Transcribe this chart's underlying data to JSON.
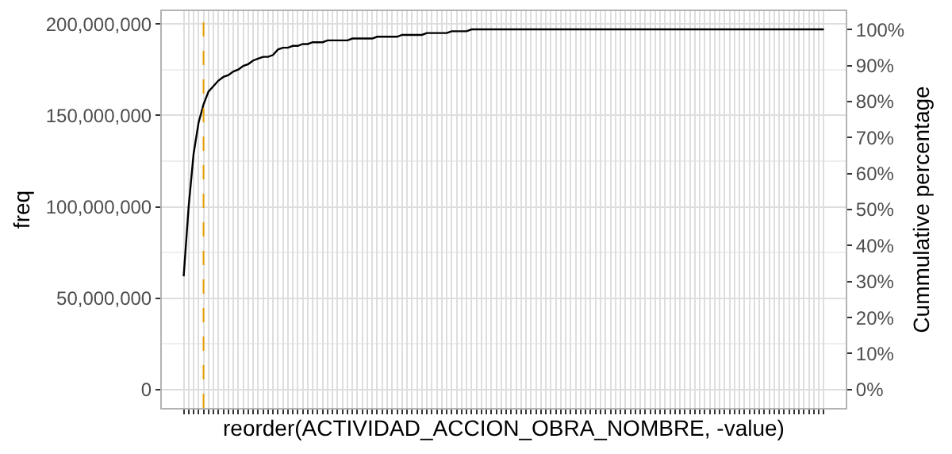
{
  "chart_data": {
    "type": "line",
    "xlabel": "reorder(ACTIVIDAD_ACCION_OBRA_NOMBRE, -value)",
    "ylabel": "freq",
    "y2label": "Cummulative percentage",
    "categories": [
      null,
      null,
      null,
      null,
      null,
      null,
      null,
      null,
      null,
      null,
      null,
      null,
      null,
      null,
      null,
      null,
      null,
      null,
      null,
      null,
      null,
      null,
      null,
      null,
      null,
      null,
      null,
      null,
      null,
      null,
      null,
      null,
      null,
      null,
      null,
      null,
      null,
      null,
      null,
      null,
      null,
      null,
      null,
      null,
      null,
      null,
      null,
      null,
      null,
      null,
      null,
      null,
      null,
      null,
      null,
      null,
      null,
      null,
      null,
      null,
      null,
      null,
      null,
      null,
      null,
      null,
      null,
      null,
      null,
      null,
      null,
      null,
      null,
      null,
      null,
      null,
      null,
      null,
      null,
      null,
      null,
      null,
      null,
      null,
      null,
      null,
      null,
      null,
      null,
      null,
      null,
      null,
      null,
      null,
      null,
      null,
      null,
      null,
      null,
      null,
      null,
      null,
      null,
      null,
      null,
      null,
      null,
      null,
      null,
      null,
      null,
      null,
      null,
      null,
      null,
      null,
      null,
      null,
      null,
      null,
      null,
      null,
      null,
      null,
      null,
      null,
      null,
      null,
      null,
      null
    ],
    "series": [
      {
        "color": "#000000",
        "values": [
          62000000,
          100000000,
          129000000,
          146000000,
          156000000,
          163000000,
          166000000,
          169000000,
          171000000,
          172000000,
          174000000,
          175000000,
          177000000,
          178000000,
          180000000,
          181000000,
          182000000,
          182000000,
          183000000,
          186000000,
          187000000,
          187000000,
          188000000,
          188000000,
          189000000,
          189000000,
          190000000,
          190000000,
          190000000,
          191000000,
          191000000,
          191000000,
          191000000,
          191000000,
          192000000,
          192000000,
          192000000,
          192000000,
          192000000,
          193000000,
          193000000,
          193000000,
          193000000,
          193000000,
          194000000,
          194000000,
          194000000,
          194000000,
          194000000,
          195000000,
          195000000,
          195000000,
          195000000,
          195000000,
          196000000,
          196000000,
          196000000,
          196000000,
          197000000,
          197000000,
          197000000,
          197000000,
          197000000,
          197000000,
          197000000,
          197000000,
          197000000,
          197000000,
          197000000,
          197000000,
          197000000,
          197000000,
          197000000,
          197000000,
          197000000,
          197000000,
          197000000,
          197000000,
          197000000,
          197000000,
          197000000,
          197000000,
          197000000,
          197000000,
          197000000,
          197000000,
          197000000,
          197000000,
          197000000,
          197000000,
          197000000,
          197000000,
          197000000,
          197000000,
          197000000,
          197000000,
          197000000,
          197000000,
          197000000,
          197000000,
          197000000,
          197000000,
          197000000,
          197000000,
          197000000,
          197000000,
          197000000,
          197000000,
          197000000,
          197000000,
          197000000,
          197000000,
          197000000,
          197000000,
          197000000,
          197000000,
          197000000,
          197000000,
          197000000,
          197000000,
          197000000,
          197000000,
          197000000,
          197000000,
          197000000,
          197000000,
          197000000,
          197000000,
          197000000,
          197000000
        ]
      }
    ],
    "ylim": [
      -10000000,
      207000000
    ],
    "yticks": [
      {
        "value": 0,
        "label": "0"
      },
      {
        "value": 50000000,
        "label": "50,000,000"
      },
      {
        "value": 100000000,
        "label": "100,000,000"
      },
      {
        "value": 150000000,
        "label": "150,000,000"
      },
      {
        "value": 200000000,
        "label": "200,000,000"
      }
    ],
    "y2lim": [
      -5.1,
      105.1
    ],
    "y2ticks": [
      {
        "value": 0,
        "label": "0%"
      },
      {
        "value": 10,
        "label": "10%"
      },
      {
        "value": 20,
        "label": "20%"
      },
      {
        "value": 30,
        "label": "30%"
      },
      {
        "value": 40,
        "label": "40%"
      },
      {
        "value": 50,
        "label": "50%"
      },
      {
        "value": 60,
        "label": "60%"
      },
      {
        "value": 70,
        "label": "70%"
      },
      {
        "value": 80,
        "label": "80%"
      },
      {
        "value": 90,
        "label": "90%"
      },
      {
        "value": 100,
        "label": "100%"
      }
    ],
    "grid": true,
    "tick_labels": "y",
    "marker": "none",
    "line_style": "solid"
  }
}
